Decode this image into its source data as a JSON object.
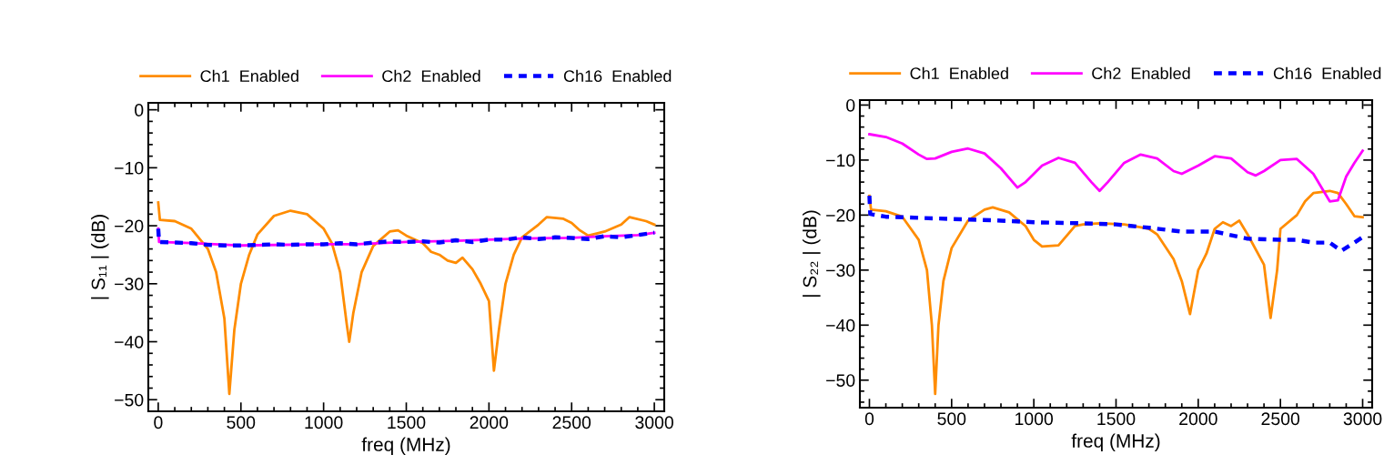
{
  "chart_data": [
    {
      "type": "line",
      "xlabel": "freq (MHz)",
      "ylabel": "| S₁₁ | (dB)",
      "xlim": [
        -60,
        3060
      ],
      "ylim": [
        -52,
        1.2
      ],
      "xticks": [
        0,
        500,
        1000,
        1500,
        2000,
        2500,
        3000
      ],
      "yticks": [
        {
          "value": 0,
          "label": "0"
        },
        {
          "value": -10,
          "label": "−10"
        },
        {
          "value": -20,
          "label": "−20"
        },
        {
          "value": -30,
          "label": "−30"
        },
        {
          "value": -40,
          "label": "−40"
        },
        {
          "value": -50,
          "label": "−50"
        }
      ],
      "legend": "top",
      "series": [
        {
          "name": "Ch1  Enabled",
          "color": "#ff8c00",
          "line_style": "solid",
          "x": [
            0,
            10,
            100,
            200,
            300,
            350,
            400,
            430,
            460,
            500,
            550,
            600,
            700,
            800,
            900,
            1000,
            1050,
            1100,
            1140,
            1155,
            1180,
            1230,
            1300,
            1400,
            1450,
            1500,
            1600,
            1650,
            1700,
            1750,
            1800,
            1840,
            1900,
            1950,
            2000,
            2030,
            2060,
            2100,
            2150,
            2200,
            2300,
            2350,
            2450,
            2500,
            2550,
            2600,
            2700,
            2800,
            2850,
            2950,
            3000
          ],
          "values": [
            -16,
            -19,
            -19.2,
            -20.5,
            -24,
            -28,
            -36,
            -49,
            -38,
            -30,
            -25,
            -21.5,
            -18.3,
            -17.4,
            -18,
            -20.5,
            -23,
            -28,
            -37,
            -40,
            -35,
            -28,
            -23.5,
            -21,
            -20.8,
            -21.7,
            -23,
            -24.5,
            -25,
            -26,
            -26.4,
            -25.5,
            -27.5,
            -30,
            -33,
            -45,
            -38,
            -30,
            -25,
            -22,
            -19.8,
            -18.5,
            -18.8,
            -19.5,
            -20.8,
            -21.7,
            -21,
            -19.8,
            -18.5,
            -19.2,
            -19.8
          ]
        },
        {
          "name": "Ch2  Enabled",
          "color": "#ff00ff",
          "line_style": "solid",
          "x": [
            0,
            5,
            200,
            500,
            1000,
            1200,
            1500,
            1800,
            2000,
            2200,
            2500,
            2700,
            2900,
            3000
          ],
          "values": [
            -20.5,
            -22.8,
            -23,
            -23.4,
            -23.2,
            -23.2,
            -22.8,
            -22.6,
            -22.4,
            -22.2,
            -22.1,
            -21.8,
            -21.6,
            -21.2
          ]
        },
        {
          "name": "Ch16  Enabled",
          "color": "#0000ff",
          "line_style": "dashed",
          "x": [
            0,
            5,
            100,
            200,
            300,
            400,
            500,
            600,
            700,
            800,
            900,
            1000,
            1100,
            1200,
            1300,
            1400,
            1500,
            1600,
            1700,
            1800,
            1900,
            2000,
            2100,
            2200,
            2300,
            2400,
            2500,
            2600,
            2700,
            2800,
            2900,
            3000
          ],
          "values": [
            -20.5,
            -22.8,
            -22.9,
            -23,
            -23.3,
            -23.4,
            -23.4,
            -23.3,
            -23.2,
            -23.3,
            -23.2,
            -23.2,
            -23,
            -23.2,
            -22.9,
            -22.7,
            -22.8,
            -22.7,
            -22.9,
            -22.5,
            -22.8,
            -22.4,
            -22.4,
            -22,
            -22.3,
            -22,
            -22.1,
            -22.3,
            -21.8,
            -22,
            -21.6,
            -21.2
          ]
        }
      ]
    },
    {
      "type": "line",
      "xlabel": "freq (MHz)",
      "ylabel": "| S₂₂ | (dB)",
      "xlim": [
        -58,
        3058
      ],
      "ylim": [
        -55,
        0.9
      ],
      "xticks": [
        0,
        500,
        1000,
        1500,
        2000,
        2500,
        3000
      ],
      "yticks": [
        {
          "value": 0,
          "label": "0"
        },
        {
          "value": -10,
          "label": "−10"
        },
        {
          "value": -20,
          "label": "−20"
        },
        {
          "value": -30,
          "label": "−30"
        },
        {
          "value": -40,
          "label": "−40"
        },
        {
          "value": -50,
          "label": "−50"
        }
      ],
      "legend": "top",
      "series": [
        {
          "name": "Ch1  Enabled",
          "color": "#ff8c00",
          "line_style": "solid",
          "x": [
            0,
            10,
            100,
            200,
            300,
            350,
            380,
            400,
            420,
            450,
            500,
            600,
            700,
            750,
            850,
            950,
            1000,
            1050,
            1150,
            1250,
            1300,
            1400,
            1550,
            1700,
            1750,
            1850,
            1900,
            1950,
            2000,
            2050,
            2100,
            2150,
            2200,
            2250,
            2300,
            2400,
            2440,
            2480,
            2500,
            2600,
            2650,
            2700,
            2800,
            2850,
            2900,
            2950,
            3000
          ],
          "values": [
            -16.5,
            -19,
            -19.3,
            -20.3,
            -24.5,
            -30,
            -40,
            -52.5,
            -40,
            -32,
            -26,
            -21,
            -19,
            -18.6,
            -19.5,
            -22,
            -24.5,
            -25.7,
            -25.5,
            -22,
            -21.7,
            -21.5,
            -21.7,
            -22.5,
            -23.5,
            -28,
            -32,
            -38,
            -30,
            -27,
            -22.5,
            -21.3,
            -22,
            -21,
            -23.5,
            -29,
            -38.7,
            -30,
            -22.5,
            -20,
            -17.5,
            -16,
            -15.6,
            -16,
            -18,
            -20.2,
            -20.4
          ]
        },
        {
          "name": "Ch2  Enabled",
          "color": "#ff00ff",
          "line_style": "solid",
          "x": [
            0,
            100,
            200,
            300,
            350,
            400,
            500,
            600,
            700,
            800,
            900,
            950,
            1050,
            1150,
            1250,
            1350,
            1400,
            1450,
            1550,
            1650,
            1750,
            1850,
            1900,
            2000,
            2100,
            2200,
            2300,
            2350,
            2400,
            2500,
            2600,
            2700,
            2800,
            2850,
            2900,
            2950,
            3000
          ],
          "values": [
            -5.3,
            -5.8,
            -7,
            -9,
            -9.8,
            -9.7,
            -8.5,
            -7.9,
            -8.8,
            -11.5,
            -15,
            -14,
            -11,
            -9.6,
            -10.5,
            -14,
            -15.6,
            -14,
            -10.5,
            -9,
            -9.7,
            -12,
            -12.5,
            -11,
            -9.3,
            -9.7,
            -12.2,
            -12.8,
            -12,
            -10,
            -9.8,
            -12.5,
            -17.5,
            -17.3,
            -13,
            -10.5,
            -8.3
          ]
        },
        {
          "name": "Ch16  Enabled",
          "color": "#0000ff",
          "line_style": "dashed",
          "x": [
            0,
            5,
            100,
            300,
            500,
            800,
            1000,
            1300,
            1500,
            1700,
            1900,
            2100,
            2300,
            2500,
            2600,
            2700,
            2800,
            2870,
            2950,
            3000
          ],
          "values": [
            -16.5,
            -19.8,
            -20.3,
            -20.5,
            -20.7,
            -21,
            -21.3,
            -21.5,
            -21.7,
            -22.3,
            -23,
            -23,
            -24.3,
            -24.5,
            -24.5,
            -25,
            -25,
            -26.5,
            -25,
            -24
          ]
        }
      ]
    }
  ]
}
